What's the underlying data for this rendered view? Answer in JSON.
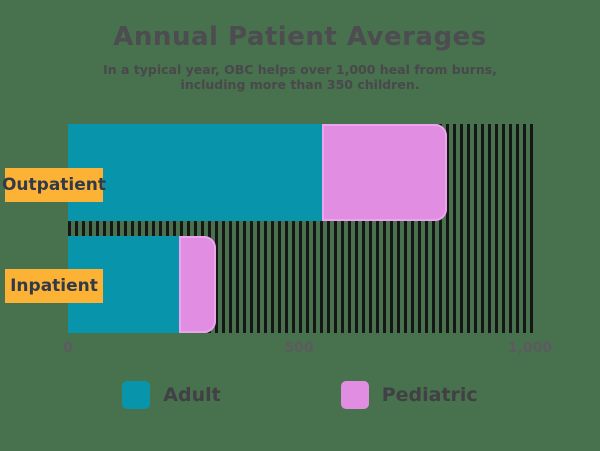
{
  "header": {
    "title": "Annual Patient Averages",
    "subtitle_line1": "In a typical year, OBC helps over 1,000 heal from burns,",
    "subtitle_line2": "including more than 350 children."
  },
  "colors": {
    "background": "#48714D",
    "adult": "#0894AB",
    "pediatric": "#E08DE2",
    "pediatric_edge": "#ECA4ED",
    "category_chip": "#FBB235",
    "chip_text": "#323A49",
    "title_text": "#4C4C51",
    "subtitle_text": "#48484D",
    "tick_text": "#5B5B60",
    "legend_text": "#404045",
    "hatch": "#161616"
  },
  "chart_data": {
    "type": "bar",
    "orientation": "horizontal",
    "stacked": true,
    "title": "Annual Patient Averages",
    "subtitle": "In a typical year, OBC helps over 1,000 heal from burns, including more than 350 children.",
    "categories": [
      "Outpatient",
      "Inpatient"
    ],
    "series": [
      {
        "name": "Adult",
        "color": "#0894AB",
        "values": [
          550,
          240
        ]
      },
      {
        "name": "Pediatric",
        "color": "#E08DE2",
        "edge": "#ECA4ED",
        "values": [
          270,
          80
        ]
      }
    ],
    "xlim": [
      0,
      1010
    ],
    "x_ticks": [
      {
        "value": 0,
        "label": "0"
      },
      {
        "value": 500,
        "label": "500"
      },
      {
        "value": 1000,
        "label": "1,000"
      }
    ],
    "grid": false,
    "plot_background": "vertical-hatch",
    "legend_position": "bottom",
    "legend": [
      "Adult",
      "Pediatric"
    ]
  }
}
